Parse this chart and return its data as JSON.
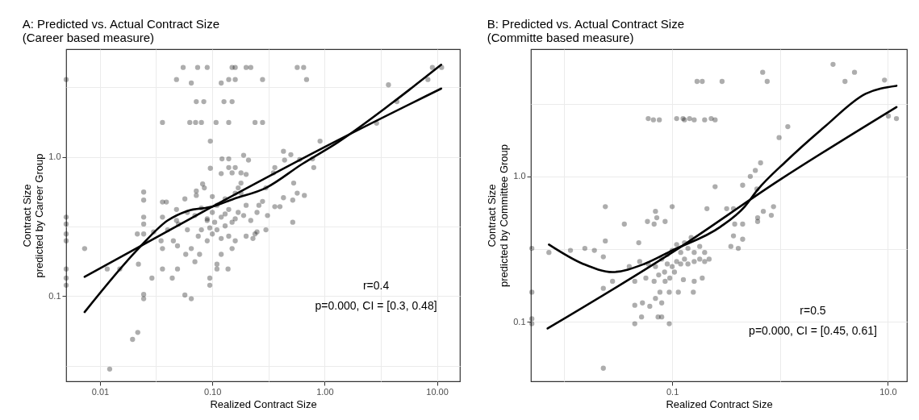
{
  "chart_data": [
    {
      "type": "scatter",
      "title": "A: Predicted vs. Actual Contract Size",
      "subtitle": "(Career based measure)",
      "xlabel": "Realized Contract Size",
      "ylabel": "Contract Size\npredicted by Career Group",
      "log": "xy",
      "grid": true,
      "marker": "circle",
      "xlim": [
        0.005,
        16
      ],
      "ylim": [
        0.0245,
        5.95
      ],
      "xticks": [
        {
          "value": 0.01,
          "label": "0.01"
        },
        {
          "value": 0.0316,
          "label": null
        },
        {
          "value": 0.1,
          "label": "0.10"
        },
        {
          "value": 0.316,
          "label": null
        },
        {
          "value": 1,
          "label": "1.00"
        },
        {
          "value": 3.16,
          "label": null
        },
        {
          "value": 10,
          "label": "10.00"
        }
      ],
      "yticks": [
        {
          "value": 0.0316,
          "label": null
        },
        {
          "value": 0.1,
          "label": "0.1"
        },
        {
          "value": 0.316,
          "label": null
        },
        {
          "value": 1,
          "label": "1.0"
        },
        {
          "value": 3.16,
          "label": null
        }
      ],
      "annotations": [
        "r=0.4",
        "p=0.000, CI = [0.3, 0.48]"
      ],
      "series": [
        {
          "color": "#000000",
          "x": [
            0.055,
            0.074,
            0.09,
            0.15,
            0.16,
            0.2,
            0.22,
            0.57,
            0.65,
            9.1,
            11,
            0.005,
            0.048,
            0.14,
            0.16,
            0.28,
            0.69,
            8.3,
            0.065,
            0.12,
            3.7,
            0.072,
            0.084,
            0.127,
            0.15,
            4.4,
            0.036,
            0.063,
            0.071,
            0.08,
            0.108,
            0.14,
            0.24,
            0.28,
            2.9,
            0.096,
            0.91,
            0.43,
            0.5,
            0.6,
            0.78,
            0.19,
            0.122,
            0.14,
            0.005,
            0.005,
            0.005,
            0.005,
            0.005,
            0.005,
            0.005,
            0.0195,
            0.0217,
            0.0122,
            0.0245,
            0.0245,
            0.057,
            0.065,
            0.0073,
            0.0116,
            0.015,
            0.029,
            0.044,
            0.036,
            0.049,
            0.036,
            0.049,
            0.07,
            0.077,
            0.095,
            0.095,
            0.11,
            0.11,
            0.138,
            0.022,
            0.0245,
            0.0245,
            0.0245,
            0.0245,
            0.0215,
            0.0245,
            0.036,
            0.039,
            0.036,
            0.048,
            0.048,
            0.057,
            0.072,
            0.072,
            0.082,
            0.096,
            0.12,
            0.14,
            0.16,
            0.15,
            0.18,
            0.21,
            0.36,
            0.35,
            0.44,
            0.53,
            0.57,
            0.66,
            0.8,
            0.52,
            0.3,
            0.43,
            0.52,
            0.36,
            0.4,
            0.31,
            0.24,
            0.19,
            0.17,
            0.06,
            0.075,
            0.09,
            0.1,
            0.12,
            0.14,
            0.16,
            0.2,
            0.25,
            0.23,
            0.08,
            0.11,
            0.13,
            0.15,
            0.09,
            0.07,
            0.1,
            0.12,
            0.14,
            0.17,
            0.2,
            0.11,
            0.08,
            0.06,
            0.05,
            0.13,
            0.16,
            0.1,
            0.085,
            0.18,
            0.065,
            0.045,
            0.04,
            0.035,
            0.03,
            0.058,
            0.12,
            0.15,
            0.22,
            0.25,
            0.28,
            0.3,
            0.2,
            0.18,
            0.26,
            0.16,
            0.13,
            0.105,
            0.095,
            0.09
          ],
          "values": [
            4.4,
            4.4,
            4.4,
            4.4,
            4.4,
            4.4,
            4.4,
            4.4,
            4.4,
            4.4,
            4.4,
            3.6,
            3.6,
            3.6,
            3.6,
            3.6,
            3.6,
            3.6,
            3.4,
            3.4,
            3.3,
            2.5,
            2.5,
            2.5,
            2.5,
            2.5,
            1.77,
            1.77,
            1.77,
            1.77,
            1.77,
            1.77,
            1.77,
            1.77,
            1.75,
            1.3,
            1.3,
            1.1,
            1.04,
            0.96,
            0.97,
            1.03,
            0.97,
            0.97,
            0.37,
            0.33,
            0.28,
            0.25,
            0.157,
            0.135,
            0.12,
            0.049,
            0.055,
            0.03,
            0.096,
            0.103,
            0.102,
            0.096,
            0.22,
            0.157,
            0.157,
            0.135,
            0.135,
            0.157,
            0.157,
            0.22,
            0.23,
            0.177,
            0.2,
            0.135,
            0.12,
            0.17,
            0.157,
            0.157,
            0.17,
            0.56,
            0.49,
            0.37,
            0.33,
            0.28,
            0.28,
            0.475,
            0.475,
            0.37,
            0.42,
            0.35,
            0.5,
            0.53,
            0.57,
            0.64,
            0.83,
            0.76,
            0.84,
            0.84,
            0.77,
            0.77,
            0.95,
            0.84,
            0.77,
            0.95,
            0.65,
            0.55,
            0.53,
            0.84,
            0.34,
            0.3,
            0.51,
            0.49,
            0.44,
            0.44,
            0.38,
            0.28,
            0.38,
            0.6,
            0.3,
            0.27,
            0.25,
            0.28,
            0.26,
            0.27,
            0.25,
            0.27,
            0.29,
            0.26,
            0.3,
            0.3,
            0.32,
            0.34,
            0.35,
            0.38,
            0.4,
            0.37,
            0.42,
            0.4,
            0.45,
            0.45,
            0.43,
            0.4,
            0.33,
            0.5,
            0.55,
            0.52,
            0.6,
            0.65,
            0.22,
            0.25,
            0.3,
            0.25,
            0.29,
            0.2,
            0.2,
            0.22,
            0.35,
            0.4,
            0.48,
            0.6,
            0.75,
            0.55,
            0.45,
            0.36,
            0.39,
            0.34,
            0.31,
            0.36
          ]
        },
        {
          "type": "line",
          "color": "#000000",
          "marker": "none",
          "line_style": "solid",
          "x": [
            0.0073,
            0.1,
            1,
            10.9
          ],
          "values": [
            0.138,
            0.44,
            1.18,
            3.1
          ]
        },
        {
          "type": "line",
          "color": "#000000",
          "marker": "none",
          "line_style": "solid",
          "x": [
            0.0073,
            0.022,
            0.04,
            0.06,
            0.1,
            0.155,
            0.3,
            0.63,
            1.3,
            4,
            10.9
          ],
          "values": [
            0.077,
            0.22,
            0.35,
            0.41,
            0.44,
            0.5,
            0.6,
            0.89,
            1.27,
            2.45,
            4.6
          ]
        }
      ]
    },
    {
      "type": "scatter",
      "title": "B: Predicted vs. Actual Contract Size",
      "subtitle": "(Committe based measure)",
      "xlabel": "Realized Contract Size",
      "ylabel": "Contract Size\npredicted by Committee Group",
      "log": "xy",
      "grid": true,
      "marker": "circle",
      "xlim": [
        0.0049,
        15
      ],
      "ylim": [
        0.039,
        7.5
      ],
      "xticks": [
        {
          "value": 0.01,
          "label": null
        },
        {
          "value": 0.1,
          "label": "0.1"
        },
        {
          "value": 1,
          "label": null
        },
        {
          "value": 10,
          "label": "10.0"
        }
      ],
      "yticks": [
        {
          "value": 0.1,
          "label": "0.1"
        },
        {
          "value": 0.316,
          "label": null
        },
        {
          "value": 1,
          "label": "1.0"
        },
        {
          "value": 3.16,
          "label": null
        }
      ],
      "annotations": [
        "r=0.5",
        "p=0.000, CI = [0.45, 0.61]"
      ],
      "series": [
        {
          "color": "#000000",
          "x": [
            3.1,
            4.9,
            4.0,
            9.3,
            10.1,
            12,
            0.69,
            0.76,
            0.17,
            0.19,
            0.29,
            0.06,
            0.067,
            0.076,
            0.11,
            0.126,
            0.13,
            0.145,
            0.16,
            0.2,
            0.23,
            0.25,
            1.18,
            0.98,
            0.66,
            0.59,
            0.53,
            0.45,
            0.25,
            0.61,
            0.87,
            0.7,
            0.83,
            0.62,
            0.62,
            0.21,
            0.32,
            0.37,
            0.45,
            0.38,
            0.45,
            0.37,
            0.35,
            0.41,
            0.024,
            0.1,
            0.07,
            0.072,
            0.059,
            0.068,
            0.086,
            0.036,
            0.024,
            0.049,
            0.005,
            0.0072,
            0.0114,
            0.0155,
            0.019,
            0.023,
            0.005,
            0.005,
            0.005,
            0.023,
            0.023,
            0.028,
            0.045,
            0.045,
            0.052,
            0.053,
            0.062,
            0.07,
            0.074,
            0.08,
            0.094,
            0.08,
            0.077,
            0.094,
            0.114,
            0.157,
            0.045,
            0.057,
            0.068,
            0.086,
            0.105,
            0.127,
            0.16,
            0.19,
            0.04,
            0.05,
            0.06,
            0.07,
            0.08,
            0.09,
            0.1,
            0.11,
            0.12,
            0.13,
            0.14,
            0.16,
            0.18,
            0.2,
            0.22,
            0.09,
            0.1,
            0.12,
            0.14,
            0.16,
            0.18,
            0.13,
            0.11,
            0.15,
            0.2,
            0.085,
            0.095,
            0.075
          ],
          "values": [
            5.9,
            5.2,
            4.5,
            4.6,
            2.6,
            2.5,
            5.2,
            4.5,
            4.5,
            4.5,
            4.5,
            2.5,
            2.45,
            2.45,
            2.5,
            2.5,
            2.45,
            2.5,
            2.45,
            2.45,
            2.5,
            2.45,
            2.2,
            1.85,
            1.24,
            1.1,
            1.0,
            0.87,
            0.85,
            0.82,
            0.62,
            0.575,
            0.54,
            0.52,
            0.49,
            0.6,
            0.6,
            0.6,
            0.47,
            0.47,
            0.37,
            0.39,
            0.33,
            0.32,
            0.62,
            0.62,
            0.575,
            0.52,
            0.49,
            0.47,
            0.49,
            0.47,
            0.36,
            0.35,
            0.32,
            0.3,
            0.31,
            0.32,
            0.31,
            0.28,
            0.16,
            0.105,
            0.097,
            0.17,
            0.048,
            0.19,
            0.13,
            0.097,
            0.108,
            0.135,
            0.128,
            0.145,
            0.108,
            0.108,
            0.097,
            0.135,
            0.16,
            0.16,
            0.16,
            0.16,
            0.19,
            0.2,
            0.19,
            0.19,
            0.22,
            0.195,
            0.19,
            0.2,
            0.24,
            0.26,
            0.25,
            0.24,
            0.27,
            0.25,
            0.24,
            0.26,
            0.25,
            0.27,
            0.25,
            0.26,
            0.27,
            0.26,
            0.27,
            0.29,
            0.31,
            0.3,
            0.32,
            0.3,
            0.33,
            0.35,
            0.34,
            0.38,
            0.3,
            0.22,
            0.2,
            0.21
          ]
        },
        {
          "type": "line",
          "color": "#000000",
          "marker": "none",
          "line_style": "solid",
          "x": [
            0.007,
            0.1,
            1,
            12
          ],
          "values": [
            0.09,
            0.3,
            0.95,
            3.0
          ]
        },
        {
          "type": "line",
          "color": "#000000",
          "marker": "none",
          "line_style": "solid",
          "x": [
            0.0072,
            0.015,
            0.028,
            0.055,
            0.1,
            0.28,
            0.47,
            0.62,
            1.15,
            2.6,
            6.2,
            12
          ],
          "values": [
            0.34,
            0.25,
            0.22,
            0.25,
            0.31,
            0.45,
            0.62,
            0.81,
            1.28,
            2.2,
            3.7,
            4.2
          ]
        }
      ]
    }
  ]
}
